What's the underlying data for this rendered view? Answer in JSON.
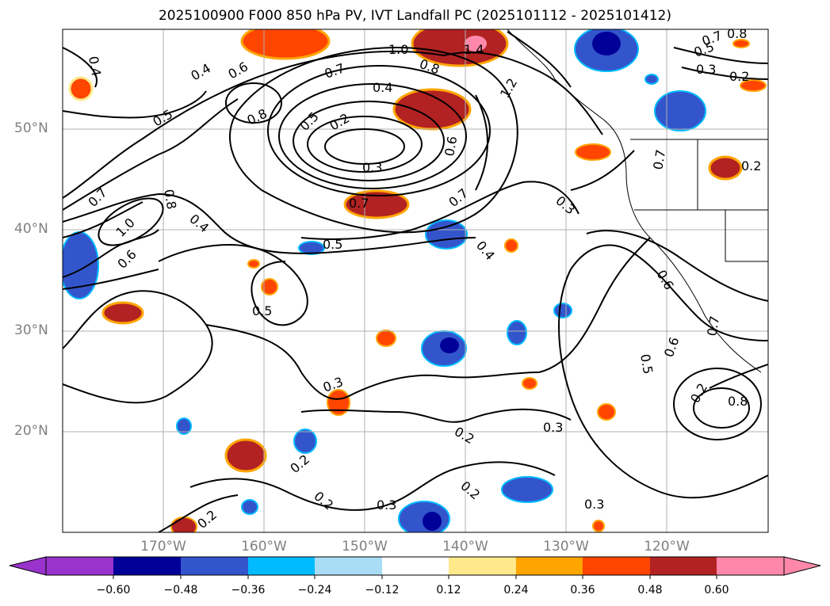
{
  "title": "2025100900 F000 850 hPa PV, IVT Landfall PC (2025101112 - 2025101412)",
  "lat_labels": [
    "50°N",
    "40°N",
    "30°N",
    "20°N"
  ],
  "lon_labels": [
    "170°W",
    "160°W",
    "150°W",
    "140°W",
    "130°W",
    "120°W"
  ],
  "colorbar": {
    "ticks": [
      "−0.60",
      "−0.48",
      "−0.36",
      "−0.24",
      "−0.12",
      "0.12",
      "0.24",
      "0.36",
      "0.48",
      "0.60"
    ],
    "colors": [
      "#9933cc",
      "#000099",
      "#3355cc",
      "#00bbff",
      "#aaddf5",
      "#ffffff",
      "#ffe98a",
      "#ffa500",
      "#ff4500",
      "#b22222",
      "#ff88aa"
    ]
  },
  "contour_labels": [
    "0.4",
    "0.4",
    "0.6",
    "0.5",
    "0.7",
    "1.0",
    "0.8",
    "1.4",
    "0.4",
    "0.8",
    "0.5",
    "0.2",
    "0.3",
    "0.6",
    "1.2",
    "0.7",
    "0.6",
    "0.8",
    "0.7",
    "1.0",
    "0.4",
    "0.6",
    "0.5",
    "0.7",
    "0.4",
    "0.5",
    "0.3",
    "0.3",
    "0.3",
    "0.2",
    "0.2",
    "0.2",
    "0.3",
    "0.2",
    "0.3",
    "0.2",
    "0.8",
    "0.6",
    "0.5",
    "0.7",
    "0.2",
    "0.7",
    "0.7",
    "0.3",
    "0.2",
    "0.8",
    "0.5",
    "0.2"
  ]
}
